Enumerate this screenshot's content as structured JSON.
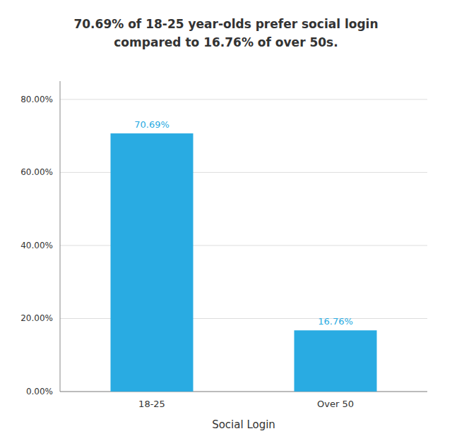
{
  "chart_data": {
    "type": "bar",
    "title": "70.69% of 18-25 year-olds prefer social login",
    "subtitle": "compared to 16.76% of over 50s.",
    "categories": [
      "18-25",
      "Over 50"
    ],
    "values": [
      70.69,
      16.76
    ],
    "value_labels": [
      "70.69%",
      "16.76%"
    ],
    "data_labels": true,
    "color": "#29ABE2",
    "xlabel": "Social Login",
    "ylim": [
      0,
      85
    ],
    "yticks": [
      {
        "value": 0,
        "label": "0.00%"
      },
      {
        "value": 20,
        "label": "20.00%"
      },
      {
        "value": 40,
        "label": "40.00%"
      },
      {
        "value": 60,
        "label": "60.00%"
      },
      {
        "value": 80,
        "label": "80.00%"
      }
    ],
    "grid": true
  }
}
